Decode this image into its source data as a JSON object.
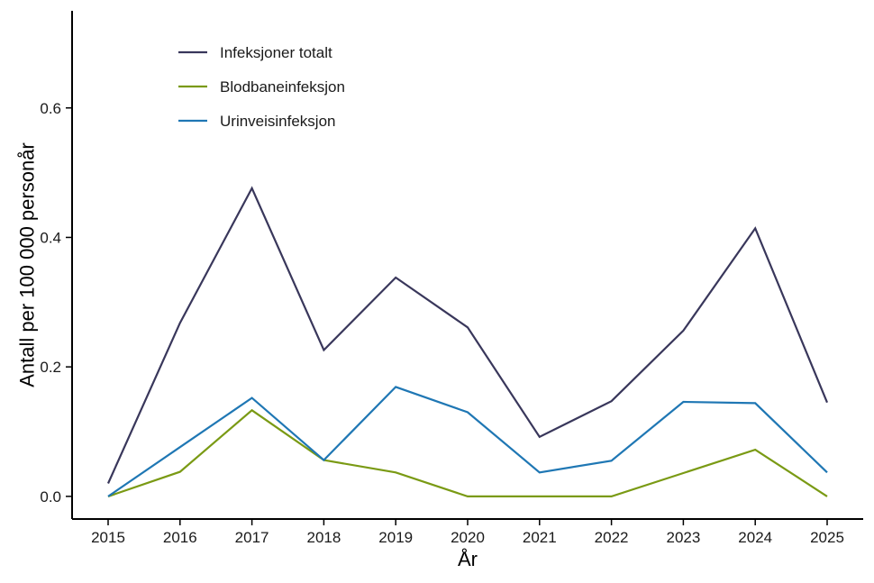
{
  "chart_data": {
    "type": "line",
    "xlabel": "År",
    "ylabel": "Antall per 100 000 personår",
    "x": [
      2015,
      2016,
      2017,
      2018,
      2019,
      2020,
      2021,
      2022,
      2023,
      2024,
      2025
    ],
    "ylim": [
      -0.035,
      0.75
    ],
    "yticks": [
      0.0,
      0.2,
      0.4,
      0.6
    ],
    "ytick_labels": [
      "0.0",
      "0.2",
      "0.4",
      "0.6"
    ],
    "grid": false,
    "legend_position": "top-left",
    "series": [
      {
        "name": "Infeksjoner totalt",
        "color": "#39375b",
        "values": [
          0.02,
          0.268,
          0.476,
          0.226,
          0.338,
          0.261,
          0.092,
          0.147,
          0.256,
          0.414,
          0.145
        ]
      },
      {
        "name": "Blodbaneinfeksjon",
        "color": "#7a9a14",
        "values": [
          0.0,
          0.038,
          0.133,
          0.056,
          0.037,
          0.0,
          0.0,
          0.0,
          0.036,
          0.072,
          0.0
        ]
      },
      {
        "name": "Urinveisinfeksjon",
        "color": "#1f77b4",
        "values": [
          0.0,
          0.076,
          0.152,
          0.056,
          0.169,
          0.13,
          0.037,
          0.055,
          0.146,
          0.144,
          0.037
        ]
      }
    ]
  }
}
